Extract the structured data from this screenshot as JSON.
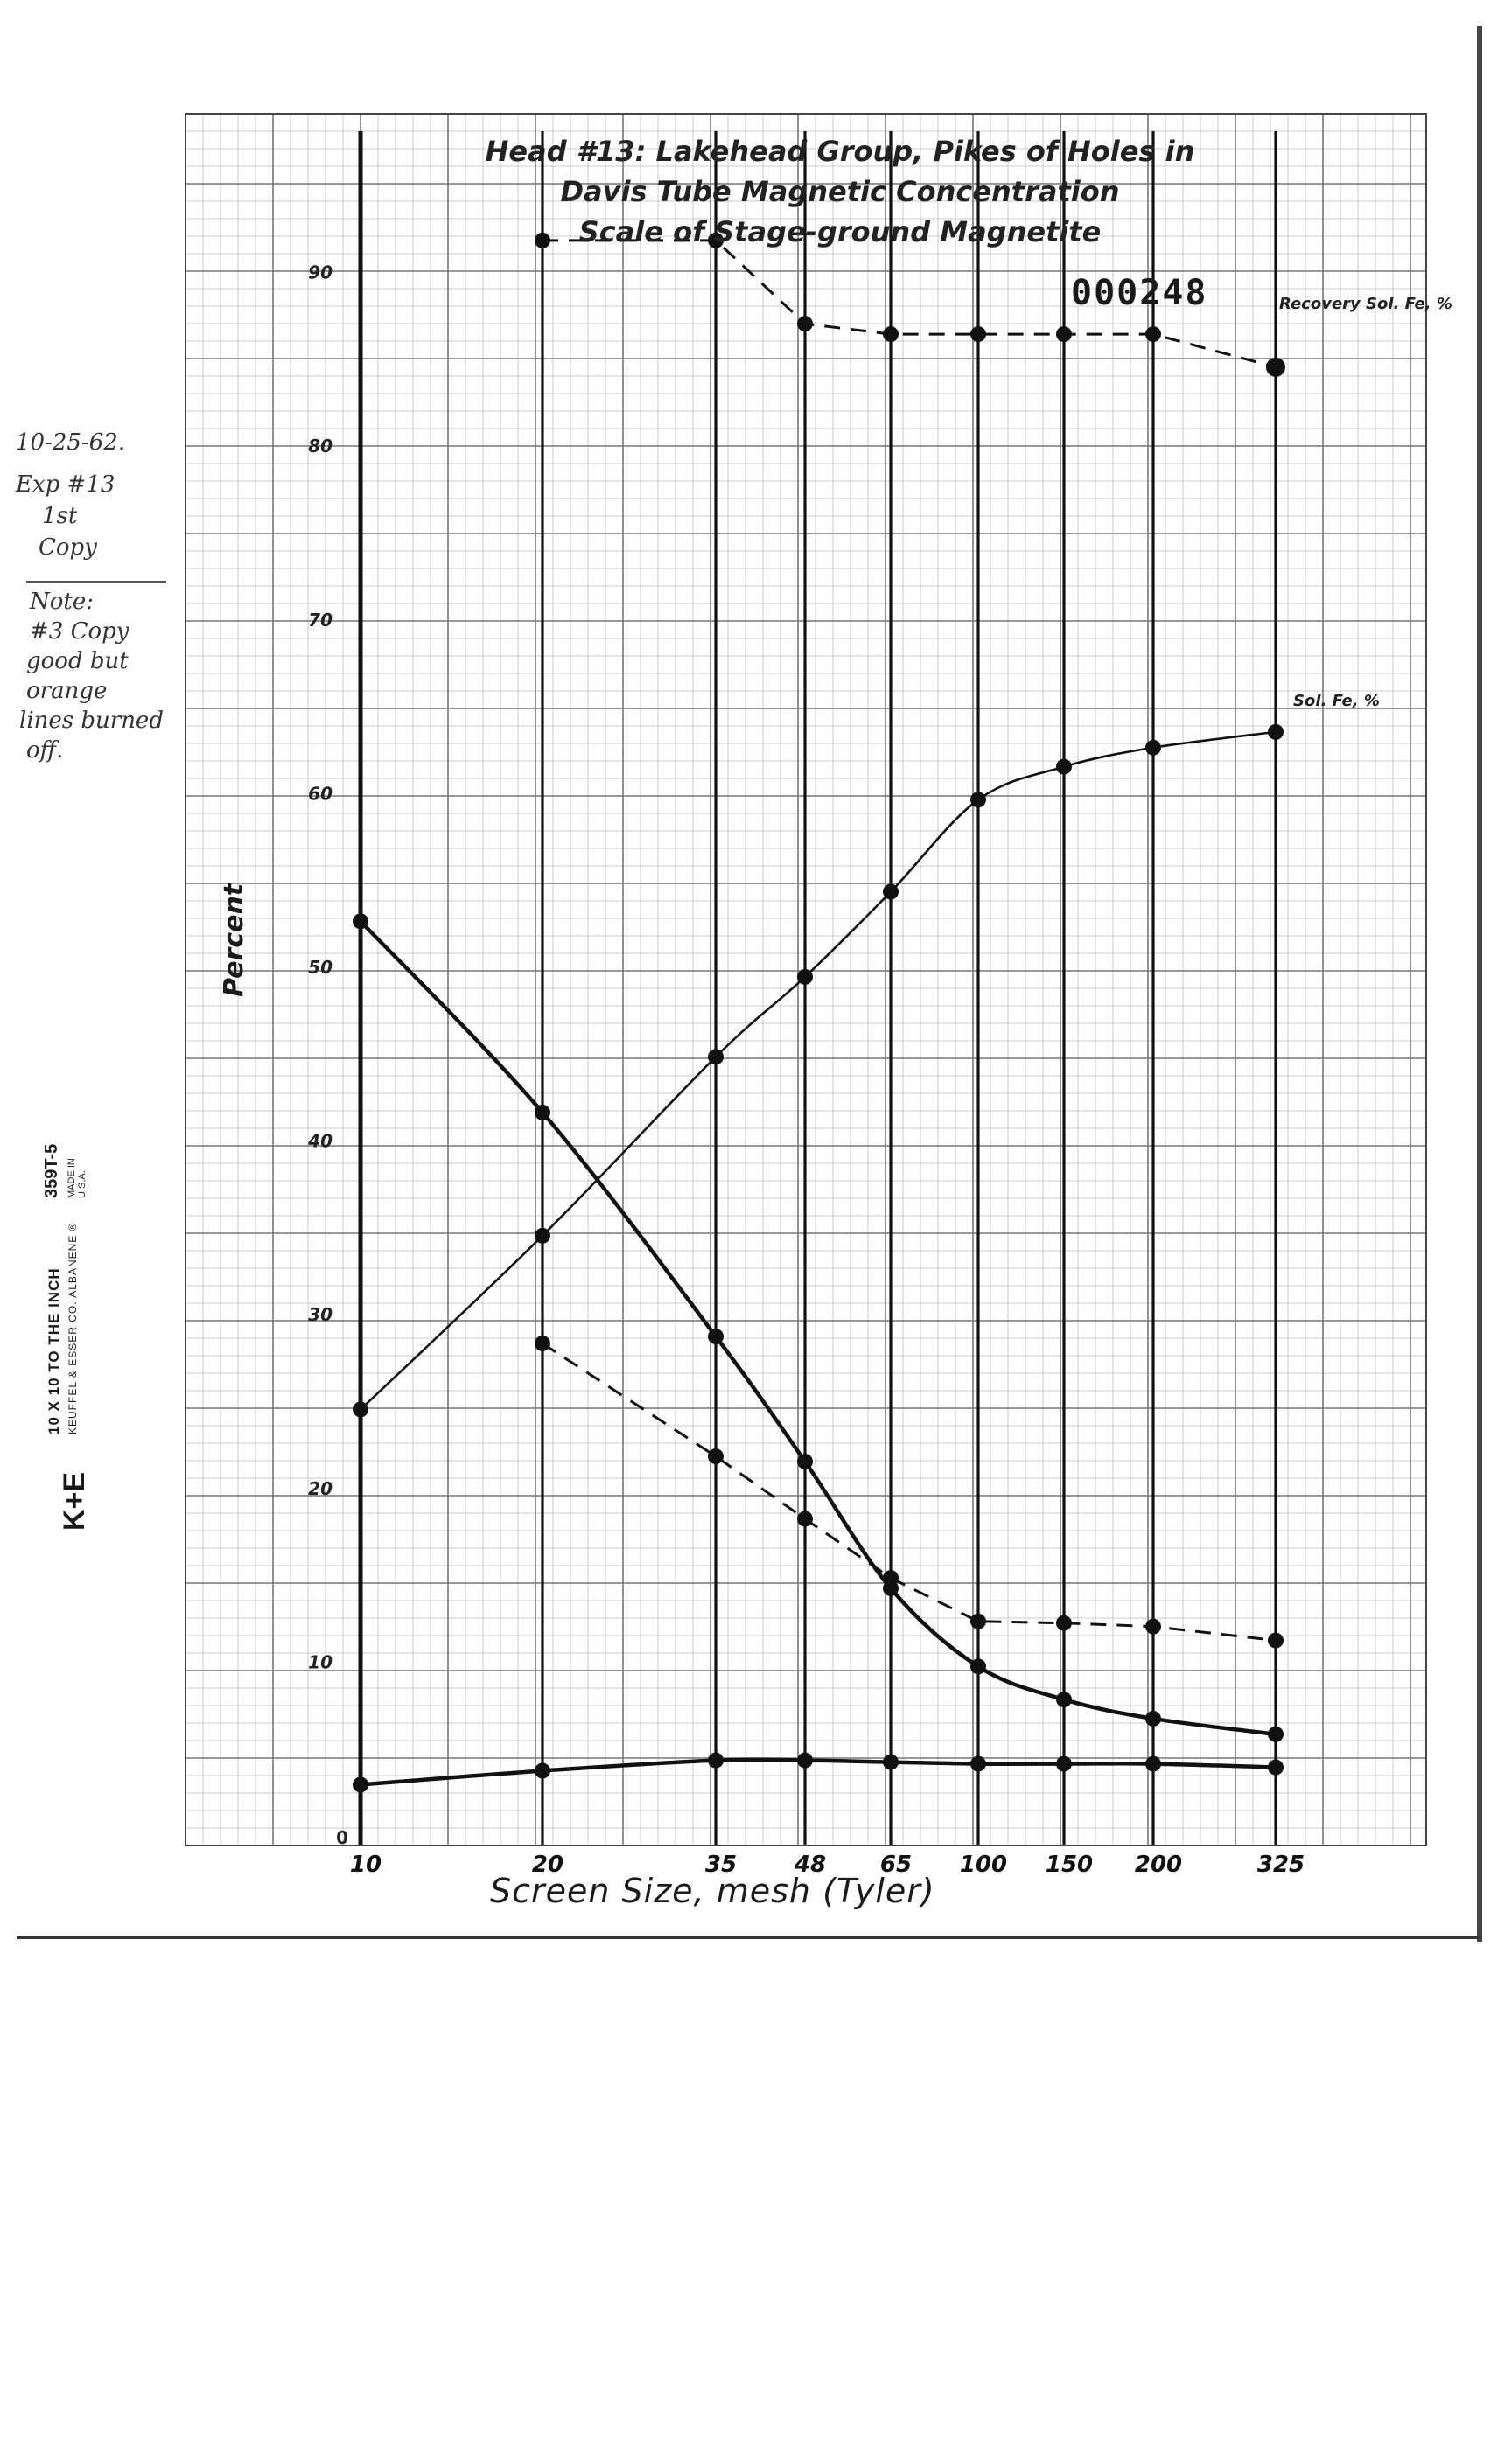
{
  "document": {
    "margin_notes": {
      "date": "10-25-62.",
      "experiment": "Exp #13",
      "copy_line1": "1st",
      "copy_line2": "Copy",
      "note_line1": "Note:",
      "note_line2": "#3 Copy",
      "note_line3": "good but",
      "note_line4": "orange",
      "note_line5": "lines burned",
      "note_line6": "off."
    },
    "stamp_number": "000248",
    "paper_vendor": {
      "logo": "K+E",
      "line1": "10 X 10 TO THE INCH",
      "line2": "KEUFFEL & ESSER CO.  ALBANENE ®",
      "model": "359T-5",
      "made_in": "MADE IN U.S.A."
    }
  },
  "chart_data": {
    "type": "line",
    "title_line1": "Head #13: Lakehead Group, Pikes of Holes in",
    "title_line2": "Davis Tube Magnetic Concentration",
    "title_line3": "Scale of Stage-ground Magnetite",
    "xlabel": "Screen Size, mesh (Tyler)",
    "ylabel": "Percent",
    "categories": [
      "10",
      "20",
      "35",
      "48",
      "65",
      "100",
      "150",
      "200",
      "325"
    ],
    "yticks": [
      0,
      10,
      20,
      30,
      40,
      50,
      60,
      70,
      80,
      90
    ],
    "ylim": [
      0,
      100
    ],
    "grid": true,
    "legend": "labels at right end of each curve",
    "series": [
      {
        "name": "Recovery Sol. Fe, %",
        "style": "dashed",
        "values": [
          null,
          91.8,
          91.8,
          87,
          86.4,
          86.4,
          86.4,
          86.4,
          84.5
        ]
      },
      {
        "name": "Sol. Fe, %",
        "style": "solid-thin",
        "values": [
          24.5,
          34.5,
          44.8,
          49.4,
          54.3,
          59.6,
          61.5,
          62.6,
          63.5
        ]
      },
      {
        "name": "",
        "style": "solid-thick",
        "values": [
          52.6,
          41.6,
          28.7,
          21.5,
          14.2,
          9.7,
          7.8,
          6.7,
          5.8
        ]
      },
      {
        "name": "",
        "style": "dashed",
        "values": [
          null,
          28.3,
          21.8,
          18.2,
          14.8,
          12.3,
          12.2,
          12.0,
          11.2
        ]
      },
      {
        "name": "",
        "style": "solid-thick",
        "values": [
          2.9,
          3.7,
          4.3,
          4.3,
          4.2,
          4.1,
          4.1,
          4.1,
          3.9
        ]
      }
    ]
  }
}
